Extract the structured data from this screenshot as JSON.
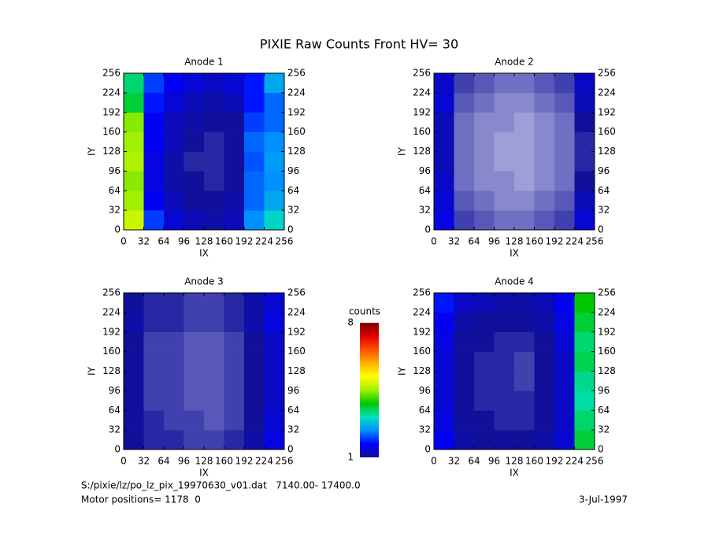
{
  "title": "PIXIE Raw Counts Front HV= 30",
  "colorbar": {
    "label": "counts",
    "range": [
      1,
      8
    ],
    "ticks": [
      1,
      8
    ],
    "colors": [
      "#10109a",
      "#0000ff",
      "#0090ff",
      "#00e0c0",
      "#00c800",
      "#a0f000",
      "#ffff00",
      "#ffb000",
      "#ff5000",
      "#e00000",
      "#800000"
    ]
  },
  "footer": {
    "file": "S:/pixie/lz/po_lz_pix_19970630_v01.dat   7140.00- 17400.0",
    "motor": "Motor positions= 1178  0",
    "date": "3-Jul-1997"
  },
  "chart_data": [
    {
      "type": "heatmap",
      "title": "Anode 1",
      "xlabel": "IX",
      "ylabel": "IY",
      "xlim": [
        0,
        256
      ],
      "ylim": [
        0,
        256
      ],
      "xticks": [
        0,
        32,
        64,
        96,
        128,
        160,
        192,
        224,
        256
      ],
      "yticks": [
        0,
        32,
        64,
        96,
        128,
        160,
        192,
        224,
        256
      ],
      "values": [
        [
          4.8,
          2.0,
          1.4,
          1.2,
          1.1,
          1.2,
          2.4,
          3.0
        ],
        [
          4.5,
          1.6,
          1.2,
          1.0,
          1.0,
          1.1,
          2.2,
          2.6
        ],
        [
          4.4,
          1.5,
          1.1,
          1.0,
          0.9,
          1.0,
          2.2,
          2.4
        ],
        [
          4.6,
          1.5,
          1.1,
          0.9,
          0.9,
          1.0,
          2.1,
          2.5
        ],
        [
          4.5,
          1.6,
          1.2,
          1.0,
          0.9,
          1.0,
          2.2,
          2.4
        ],
        [
          4.4,
          1.6,
          1.2,
          1.1,
          1.0,
          1.0,
          2.0,
          2.2
        ],
        [
          3.6,
          1.8,
          1.4,
          1.2,
          1.1,
          1.2,
          1.8,
          2.2
        ],
        [
          3.4,
          2.0,
          1.6,
          1.4,
          1.3,
          1.4,
          1.8,
          2.6
        ]
      ]
    },
    {
      "type": "heatmap",
      "title": "Anode 2",
      "xlabel": "IX",
      "ylabel": "IY",
      "xlim": [
        0,
        256
      ],
      "ylim": [
        0,
        256
      ],
      "xticks": [
        0,
        32,
        64,
        96,
        128,
        160,
        192,
        224,
        256
      ],
      "yticks": [
        0,
        32,
        64,
        96,
        128,
        160,
        192,
        224,
        256
      ],
      "values": [
        [
          1.5,
          0.8,
          0.7,
          0.6,
          0.6,
          0.7,
          0.8,
          1.4
        ],
        [
          1.4,
          0.7,
          0.6,
          0.5,
          0.5,
          0.6,
          0.7,
          1.2
        ],
        [
          1.3,
          0.6,
          0.5,
          0.5,
          0.4,
          0.5,
          0.6,
          1.0
        ],
        [
          1.2,
          0.6,
          0.5,
          0.4,
          0.4,
          0.5,
          0.6,
          0.9
        ],
        [
          1.2,
          0.6,
          0.5,
          0.4,
          0.4,
          0.5,
          0.6,
          0.9
        ],
        [
          1.2,
          0.6,
          0.5,
          0.5,
          0.4,
          0.5,
          0.6,
          1.0
        ],
        [
          1.4,
          0.7,
          0.6,
          0.5,
          0.5,
          0.6,
          0.7,
          1.2
        ],
        [
          1.3,
          0.8,
          0.7,
          0.6,
          0.6,
          0.7,
          0.8,
          1.3
        ]
      ]
    },
    {
      "type": "heatmap",
      "title": "Anode 3",
      "xlabel": "IX",
      "ylabel": "IY",
      "xlim": [
        0,
        256
      ],
      "ylim": [
        0,
        256
      ],
      "xticks": [
        0,
        32,
        64,
        96,
        128,
        160,
        192,
        224,
        256
      ],
      "yticks": [
        0,
        32,
        64,
        96,
        128,
        160,
        192,
        224,
        256
      ],
      "values": [
        [
          1.0,
          0.9,
          0.9,
          0.8,
          0.8,
          0.9,
          1.1,
          1.5
        ],
        [
          1.0,
          0.9,
          0.8,
          0.8,
          0.7,
          0.8,
          1.0,
          1.4
        ],
        [
          1.0,
          0.8,
          0.8,
          0.7,
          0.7,
          0.8,
          1.0,
          1.3
        ],
        [
          1.0,
          0.8,
          0.8,
          0.7,
          0.7,
          0.8,
          1.0,
          1.3
        ],
        [
          1.0,
          0.8,
          0.8,
          0.7,
          0.7,
          0.8,
          1.0,
          1.3
        ],
        [
          1.0,
          0.8,
          0.8,
          0.7,
          0.7,
          0.8,
          1.0,
          1.3
        ],
        [
          1.1,
          0.9,
          0.9,
          0.8,
          0.8,
          0.9,
          1.1,
          1.5
        ],
        [
          1.0,
          0.9,
          0.9,
          0.8,
          0.8,
          0.9,
          1.1,
          1.4
        ]
      ]
    },
    {
      "type": "heatmap",
      "title": "Anode 4",
      "xlabel": "IX",
      "ylabel": "IY",
      "xlim": [
        0,
        256
      ],
      "ylim": [
        0,
        256
      ],
      "xticks": [
        0,
        32,
        64,
        96,
        128,
        160,
        192,
        224,
        256
      ],
      "yticks": [
        0,
        32,
        64,
        96,
        128,
        160,
        192,
        224,
        256
      ],
      "values": [
        [
          1.6,
          1.1,
          1.0,
          1.0,
          1.0,
          1.1,
          1.4,
          3.6
        ],
        [
          1.5,
          1.0,
          1.0,
          0.9,
          0.9,
          1.0,
          1.3,
          3.4
        ],
        [
          1.4,
          1.0,
          0.9,
          0.9,
          0.9,
          1.0,
          1.3,
          3.2
        ],
        [
          1.4,
          1.0,
          0.9,
          0.9,
          0.8,
          1.0,
          1.3,
          3.3
        ],
        [
          1.4,
          1.0,
          0.9,
          0.9,
          0.8,
          1.0,
          1.3,
          3.5
        ],
        [
          1.5,
          1.0,
          1.0,
          0.9,
          0.9,
          1.0,
          1.4,
          3.4
        ],
        [
          1.6,
          1.1,
          1.0,
          1.0,
          1.0,
          1.1,
          1.5,
          3.6
        ],
        [
          1.8,
          1.3,
          1.2,
          1.1,
          1.1,
          1.2,
          1.6,
          3.8
        ]
      ]
    }
  ]
}
